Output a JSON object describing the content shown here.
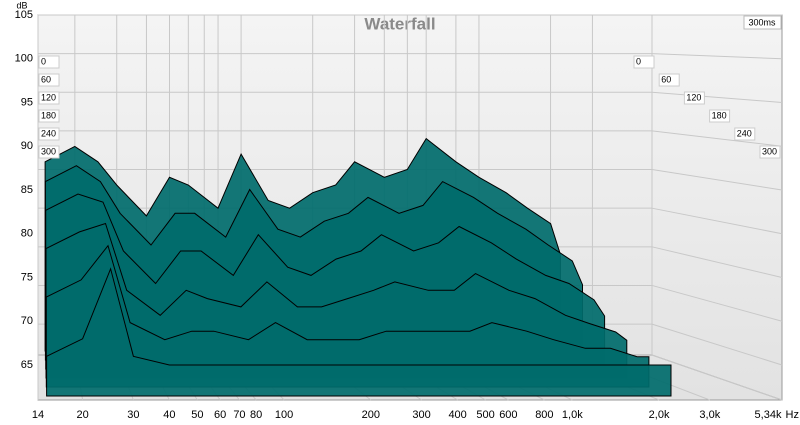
{
  "chart_data": {
    "type": "waterfall",
    "title": "Waterfall",
    "y_label": "dB",
    "x_unit": "Hz",
    "depth_label": "300ms",
    "color": "#006b6b",
    "log_x": true,
    "grid": true,
    "xlim": [
      14,
      5340
    ],
    "xticks": [
      14,
      20,
      30,
      40,
      50,
      60,
      70,
      80,
      100,
      200,
      300,
      400,
      500,
      600,
      800,
      {
        "value": 1000,
        "label": "1,0k"
      },
      {
        "value": 2000,
        "label": "2,0k"
      },
      {
        "value": 3000,
        "label": "3,0k"
      },
      {
        "value": 5340,
        "label": "5,34k"
      }
    ],
    "ylim": [
      61,
      105
    ],
    "yticks": [
      65,
      70,
      75,
      80,
      85,
      90,
      95,
      100,
      105
    ],
    "time_ticks": [
      0,
      60,
      120,
      180,
      240,
      300
    ],
    "x": [
      15,
      20,
      25,
      30,
      40,
      50,
      60,
      80,
      100,
      130,
      160,
      200,
      250,
      300,
      400,
      500,
      600,
      800,
      1000,
      1300,
      1600,
      2000,
      2200
    ],
    "series": [
      {
        "values": [
          86,
          88,
          86,
          83,
          79,
          84,
          83,
          80,
          87,
          81,
          80,
          82,
          83,
          86,
          84,
          85,
          89,
          86,
          84,
          82,
          80,
          78,
          74
        ]
      },
      {
        "values": [
          84,
          86,
          84,
          80,
          76,
          80,
          80,
          77,
          83,
          78,
          77,
          79,
          80,
          82,
          80,
          81,
          84,
          82,
          80,
          78,
          76,
          74,
          71
        ]
      },
      {
        "values": [
          81,
          83,
          82,
          76,
          72,
          76,
          76,
          73,
          78,
          74,
          73,
          75,
          76,
          78,
          76,
          77,
          79,
          77,
          75,
          73,
          72,
          70,
          68
        ]
      },
      {
        "values": [
          77,
          79,
          80,
          72,
          69,
          72,
          71,
          70,
          73,
          70,
          70,
          71,
          72,
          73,
          72,
          72,
          74,
          72,
          71,
          69,
          68,
          67,
          66
        ]
      },
      {
        "values": [
          72,
          74,
          78,
          69,
          67,
          68,
          68,
          67,
          69,
          67,
          67,
          67,
          68,
          68,
          68,
          68,
          69,
          68,
          67,
          66,
          66,
          65,
          65
        ]
      },
      {
        "values": [
          66,
          68,
          76,
          66,
          65,
          65,
          65,
          65,
          65,
          65,
          65,
          65,
          65,
          65,
          65,
          65,
          65,
          65,
          65,
          65,
          65,
          65,
          65
        ]
      }
    ]
  }
}
